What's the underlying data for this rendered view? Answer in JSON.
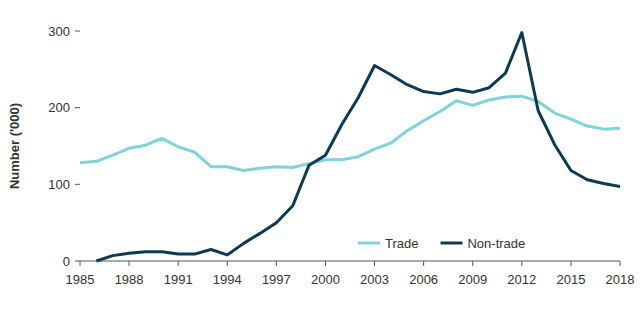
{
  "chart_data": {
    "type": "line",
    "y_label": "Number ('000)",
    "x": [
      1985,
      1986,
      1987,
      1988,
      1989,
      1990,
      1991,
      1992,
      1993,
      1994,
      1995,
      1996,
      1997,
      1998,
      1999,
      2000,
      2001,
      2002,
      2003,
      2004,
      2005,
      2006,
      2007,
      2008,
      2009,
      2010,
      2011,
      2012,
      2013,
      2014,
      2015,
      2016,
      2017,
      2018
    ],
    "series": [
      {
        "name": "Trade",
        "color": "#7fd3d9",
        "values": [
          128,
          130,
          138,
          147,
          151,
          160,
          149,
          142,
          123,
          123,
          118,
          121,
          123,
          122,
          127,
          132,
          132,
          136,
          146,
          154,
          170,
          183,
          195,
          209,
          203,
          210,
          214,
          215,
          208,
          193,
          185,
          176,
          172,
          173
        ]
      },
      {
        "name": "Non-trade",
        "color": "#0d3a52",
        "values": [
          null,
          0,
          7,
          10,
          12,
          12,
          9,
          9,
          15,
          8,
          23,
          36,
          50,
          72,
          125,
          138,
          178,
          213,
          255,
          243,
          230,
          221,
          218,
          224,
          220,
          226,
          245,
          298,
          196,
          152,
          118,
          106,
          101,
          97
        ]
      }
    ],
    "xlim": [
      1985,
      2018
    ],
    "xticks": [
      1985,
      1988,
      1991,
      1994,
      1997,
      2000,
      2003,
      2006,
      2009,
      2012,
      2015,
      2018
    ],
    "ylim": [
      0,
      300
    ],
    "yticks": [
      0,
      100,
      200,
      300
    ],
    "grid": false,
    "legend": "bottom-right"
  }
}
